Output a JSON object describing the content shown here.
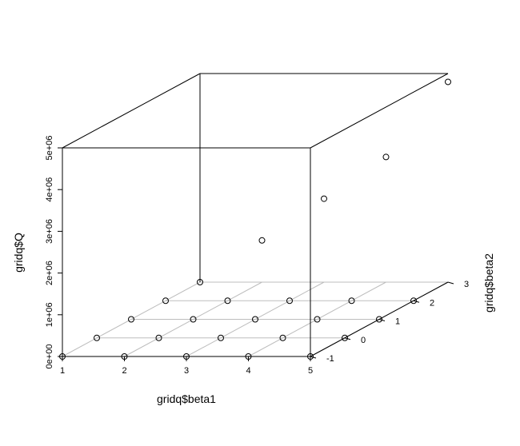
{
  "chart_data": {
    "type": "scatter",
    "projection": "3d",
    "title": "",
    "xlabel": "gridq$beta1",
    "ylabel": "gridq$beta2",
    "zlabel": "gridq$Q",
    "xlim": [
      1,
      5
    ],
    "ylim": [
      -1,
      3
    ],
    "zlim": [
      0,
      5000000
    ],
    "x_ticks": [
      "1",
      "2",
      "3",
      "4",
      "5"
    ],
    "y_ticks": [
      "-1",
      "0",
      "1",
      "2",
      "3"
    ],
    "z_ticks": [
      "0e+00",
      "1e+06",
      "2e+06",
      "3e+06",
      "4e+06",
      "5e+06"
    ],
    "grid": true,
    "point_symbol": "open-circle",
    "points": [
      {
        "x": 1,
        "y": -1,
        "z": 0
      },
      {
        "x": 2,
        "y": -1,
        "z": 0
      },
      {
        "x": 3,
        "y": -1,
        "z": 0
      },
      {
        "x": 4,
        "y": -1,
        "z": 0
      },
      {
        "x": 5,
        "y": -1,
        "z": 0
      },
      {
        "x": 1,
        "y": 0,
        "z": 0
      },
      {
        "x": 2,
        "y": 0,
        "z": 0
      },
      {
        "x": 3,
        "y": 0,
        "z": 0
      },
      {
        "x": 4,
        "y": 0,
        "z": 0
      },
      {
        "x": 5,
        "y": 0,
        "z": 0
      },
      {
        "x": 1,
        "y": 1,
        "z": 0
      },
      {
        "x": 2,
        "y": 1,
        "z": 0
      },
      {
        "x": 3,
        "y": 1,
        "z": 0
      },
      {
        "x": 4,
        "y": 1,
        "z": 0
      },
      {
        "x": 5,
        "y": 1,
        "z": 0
      },
      {
        "x": 1,
        "y": 2,
        "z": 0
      },
      {
        "x": 2,
        "y": 2,
        "z": 0
      },
      {
        "x": 3,
        "y": 2,
        "z": 0
      },
      {
        "x": 4,
        "y": 2,
        "z": 0
      },
      {
        "x": 5,
        "y": 2,
        "z": 0
      },
      {
        "x": 1,
        "y": 3,
        "z": 0
      },
      {
        "x": 2,
        "y": 3,
        "z": 1000000
      },
      {
        "x": 3,
        "y": 3,
        "z": 2000000
      },
      {
        "x": 4,
        "y": 3,
        "z": 3000000
      },
      {
        "x": 5,
        "y": 3,
        "z": 4800000
      }
    ]
  }
}
